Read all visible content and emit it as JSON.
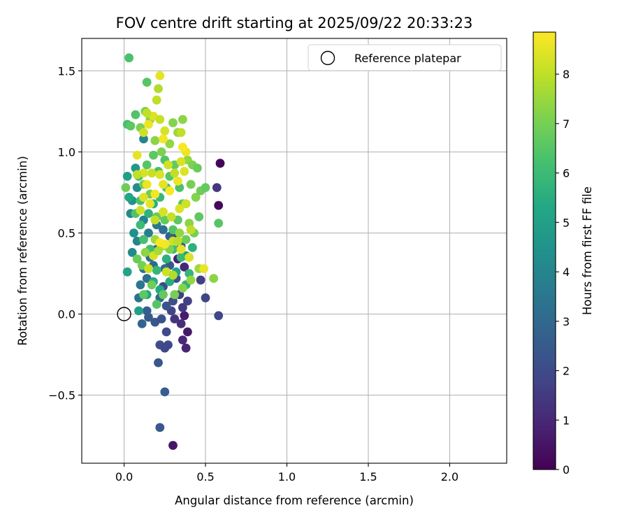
{
  "chart_data": {
    "type": "scatter",
    "title": "FOV centre drift starting at 2025/09/22 20:33:23",
    "xlabel": "Angular distance from reference (arcmin)",
    "ylabel": "Rotation from reference (arcmin)",
    "xlim": [
      -0.26,
      2.35
    ],
    "ylim": [
      -0.92,
      1.7
    ],
    "x_ticks": [
      0.0,
      0.5,
      1.0,
      1.5,
      2.0
    ],
    "x_tick_labels": [
      "0.0",
      "0.5",
      "1.0",
      "1.5",
      "2.0"
    ],
    "y_ticks": [
      -0.5,
      0.0,
      0.5,
      1.0,
      1.5
    ],
    "y_tick_labels": [
      "−0.5",
      "0.0",
      "0.5",
      "1.0",
      "1.5"
    ],
    "grid": true,
    "legend": {
      "position": "top-right",
      "entries": [
        "Reference platepar"
      ]
    },
    "reference_point": {
      "x": 0.0,
      "y": 0.0,
      "label": "Reference platepar"
    },
    "colorbar": {
      "label": "Hours from first FF file",
      "colormap": "viridis",
      "range": [
        0,
        8.85
      ],
      "ticks": [
        0,
        1,
        2,
        3,
        4,
        5,
        6,
        7,
        8
      ],
      "tick_labels": [
        "0",
        "1",
        "2",
        "3",
        "4",
        "5",
        "6",
        "7",
        "8"
      ]
    },
    "points_note": "approximate [x, y, hours] read from the plot",
    "points": [
      [
        0.59,
        0.93,
        0.1
      ],
      [
        0.58,
        0.67,
        0.2
      ],
      [
        0.3,
        -0.81,
        0.5
      ],
      [
        0.39,
        -0.11,
        0.6
      ],
      [
        0.37,
        -0.01,
        0.7
      ],
      [
        0.38,
        -0.21,
        0.9
      ],
      [
        0.36,
        -0.16,
        1.0
      ],
      [
        0.33,
        0.34,
        0.8
      ],
      [
        0.37,
        0.29,
        1.0
      ],
      [
        0.35,
        -0.06,
        1.2
      ],
      [
        0.31,
        -0.03,
        1.3
      ],
      [
        0.36,
        0.04,
        1.5
      ],
      [
        0.57,
        0.78,
        1.4
      ],
      [
        0.47,
        0.21,
        1.6
      ],
      [
        0.5,
        0.1,
        1.8
      ],
      [
        0.58,
        -0.01,
        1.9
      ],
      [
        0.39,
        0.08,
        1.7
      ],
      [
        0.34,
        0.12,
        1.6
      ],
      [
        0.29,
        0.02,
        1.8
      ],
      [
        0.26,
        -0.11,
        2.0
      ],
      [
        0.22,
        -0.19,
        2.1
      ],
      [
        0.27,
        -0.19,
        2.0
      ],
      [
        0.25,
        -0.21,
        1.9
      ],
      [
        0.21,
        -0.3,
        2.4
      ],
      [
        0.25,
        -0.48,
        2.6
      ],
      [
        0.22,
        -0.7,
        2.5
      ],
      [
        0.19,
        -0.05,
        2.4
      ],
      [
        0.23,
        -0.03,
        2.2
      ],
      [
        0.15,
        -0.02,
        2.5
      ],
      [
        0.14,
        0.02,
        2.7
      ],
      [
        0.11,
        -0.06,
        2.8
      ],
      [
        0.26,
        0.05,
        2.3
      ],
      [
        0.3,
        0.08,
        2.1
      ],
      [
        0.24,
        0.17,
        2.0
      ],
      [
        0.32,
        0.22,
        2.2
      ],
      [
        0.28,
        0.3,
        2.4
      ],
      [
        0.3,
        0.47,
        1.8
      ],
      [
        0.2,
        0.4,
        2.9
      ],
      [
        0.18,
        0.3,
        3.0
      ],
      [
        0.16,
        0.35,
        3.1
      ],
      [
        0.14,
        0.22,
        3.2
      ],
      [
        0.12,
        0.28,
        3.4
      ],
      [
        0.1,
        0.18,
        3.5
      ],
      [
        0.09,
        0.1,
        3.3
      ],
      [
        0.22,
        0.1,
        3.0
      ],
      [
        0.25,
        0.28,
        3.1
      ],
      [
        0.35,
        0.42,
        2.6
      ],
      [
        0.28,
        0.48,
        2.8
      ],
      [
        0.24,
        0.52,
        3.2
      ],
      [
        0.2,
        0.55,
        3.6
      ],
      [
        0.15,
        0.5,
        3.8
      ],
      [
        0.12,
        0.58,
        3.9
      ],
      [
        0.08,
        0.45,
        4.0
      ],
      [
        0.05,
        0.38,
        4.2
      ],
      [
        0.06,
        0.5,
        4.4
      ],
      [
        0.04,
        0.62,
        4.1
      ],
      [
        0.05,
        0.7,
        4.5
      ],
      [
        0.08,
        0.78,
        4.3
      ],
      [
        0.12,
        1.08,
        4.0
      ],
      [
        0.07,
        0.9,
        4.7
      ],
      [
        0.02,
        0.85,
        5.0
      ],
      [
        0.03,
        0.72,
        5.2
      ],
      [
        0.02,
        0.26,
        5.1
      ],
      [
        0.09,
        0.02,
        5.0
      ],
      [
        0.14,
        0.12,
        5.2
      ],
      [
        0.18,
        0.2,
        5.4
      ],
      [
        0.22,
        0.15,
        5.3
      ],
      [
        0.28,
        0.2,
        5.5
      ],
      [
        0.32,
        0.26,
        5.1
      ],
      [
        0.38,
        0.36,
        4.8
      ],
      [
        0.42,
        0.41,
        5.6
      ],
      [
        0.38,
        0.18,
        5.7
      ],
      [
        0.4,
        0.25,
        5.8
      ],
      [
        0.35,
        0.35,
        5.9
      ],
      [
        0.3,
        0.4,
        6.0
      ],
      [
        0.26,
        0.34,
        5.6
      ],
      [
        0.2,
        0.27,
        5.8
      ],
      [
        0.16,
        0.4,
        6.1
      ],
      [
        0.12,
        0.46,
        6.2
      ],
      [
        0.1,
        0.55,
        6.0
      ],
      [
        0.15,
        0.62,
        5.7
      ],
      [
        0.18,
        0.68,
        5.5
      ],
      [
        0.22,
        0.72,
        5.9
      ],
      [
        0.26,
        0.78,
        6.2
      ],
      [
        0.1,
        0.7,
        6.3
      ],
      [
        0.07,
        0.62,
        6.4
      ],
      [
        0.09,
        0.85,
        6.3
      ],
      [
        0.14,
        0.92,
        6.5
      ],
      [
        0.18,
        0.98,
        6.6
      ],
      [
        0.21,
        0.88,
        6.2
      ],
      [
        0.25,
        0.95,
        6.4
      ],
      [
        0.28,
        0.85,
        6.5
      ],
      [
        0.31,
        0.92,
        6.7
      ],
      [
        0.34,
        0.78,
        6.3
      ],
      [
        0.36,
        0.68,
        6.5
      ],
      [
        0.33,
        0.58,
        6.6
      ],
      [
        0.3,
        0.52,
        6.4
      ],
      [
        0.25,
        0.58,
        6.7
      ],
      [
        0.2,
        0.6,
        6.8
      ],
      [
        0.16,
        0.74,
        6.9
      ],
      [
        0.12,
        0.8,
        7.0
      ],
      [
        0.14,
        1.43,
        6.5
      ],
      [
        0.03,
        1.58,
        6.3
      ],
      [
        0.02,
        1.17,
        6.2
      ],
      [
        0.04,
        1.16,
        6.6
      ],
      [
        0.07,
        1.23,
        6.4
      ],
      [
        0.01,
        0.78,
        6.9
      ],
      [
        0.1,
        1.15,
        7.1
      ],
      [
        0.13,
        1.25,
        7.0
      ],
      [
        0.16,
        1.2,
        7.2
      ],
      [
        0.19,
        1.07,
        7.3
      ],
      [
        0.23,
        1.0,
        7.1
      ],
      [
        0.28,
        1.05,
        7.4
      ],
      [
        0.3,
        1.18,
        7.2
      ],
      [
        0.33,
        1.12,
        7.5
      ],
      [
        0.36,
        1.2,
        7.3
      ],
      [
        0.39,
        0.95,
        7.4
      ],
      [
        0.42,
        0.92,
        7.1
      ],
      [
        0.45,
        0.9,
        6.8
      ],
      [
        0.41,
        0.8,
        7.0
      ],
      [
        0.44,
        0.72,
        7.2
      ],
      [
        0.47,
        0.76,
        6.9
      ],
      [
        0.5,
        0.78,
        6.7
      ],
      [
        0.46,
        0.6,
        6.6
      ],
      [
        0.4,
        0.56,
        7.3
      ],
      [
        0.43,
        0.5,
        7.0
      ],
      [
        0.38,
        0.46,
        6.9
      ],
      [
        0.34,
        0.5,
        7.4
      ],
      [
        0.28,
        0.4,
        7.1
      ],
      [
        0.24,
        0.42,
        7.5
      ],
      [
        0.19,
        0.46,
        7.6
      ],
      [
        0.13,
        0.38,
        7.3
      ],
      [
        0.11,
        0.3,
        7.0
      ],
      [
        0.08,
        0.34,
        6.8
      ],
      [
        0.12,
        0.12,
        6.6
      ],
      [
        0.17,
        0.18,
        6.9
      ],
      [
        0.2,
        0.06,
        6.5
      ],
      [
        0.24,
        0.12,
        6.7
      ],
      [
        0.31,
        0.12,
        7.0
      ],
      [
        0.36,
        0.16,
        7.2
      ],
      [
        0.41,
        0.21,
        7.4
      ],
      [
        0.46,
        0.28,
        7.6
      ],
      [
        0.55,
        0.22,
        7.3
      ],
      [
        0.58,
        0.56,
        6.5
      ],
      [
        0.49,
        0.28,
        8.6
      ],
      [
        0.4,
        0.35,
        8.4
      ],
      [
        0.35,
        0.4,
        8.5
      ],
      [
        0.3,
        0.45,
        8.2
      ],
      [
        0.25,
        0.43,
        8.7
      ],
      [
        0.22,
        0.44,
        8.8
      ],
      [
        0.18,
        0.36,
        8.3
      ],
      [
        0.15,
        0.28,
        8.1
      ],
      [
        0.19,
        0.58,
        8.0
      ],
      [
        0.24,
        0.63,
        8.3
      ],
      [
        0.29,
        0.6,
        8.1
      ],
      [
        0.34,
        0.65,
        8.4
      ],
      [
        0.38,
        0.68,
        8.2
      ],
      [
        0.41,
        0.52,
        8.0
      ],
      [
        0.16,
        0.68,
        8.5
      ],
      [
        0.12,
        0.72,
        8.4
      ],
      [
        0.1,
        0.64,
        8.2
      ],
      [
        0.14,
        0.8,
        8.6
      ],
      [
        0.19,
        0.74,
        8.7
      ],
      [
        0.24,
        0.8,
        8.5
      ],
      [
        0.28,
        0.76,
        8.8
      ],
      [
        0.33,
        0.82,
        8.6
      ],
      [
        0.37,
        0.88,
        8.4
      ],
      [
        0.38,
        1.0,
        8.6
      ],
      [
        0.35,
        0.94,
        8.3
      ],
      [
        0.31,
        0.87,
        8.0
      ],
      [
        0.27,
        0.92,
        8.2
      ],
      [
        0.22,
        0.86,
        8.4
      ],
      [
        0.17,
        0.87,
        8.1
      ],
      [
        0.12,
        0.87,
        8.3
      ],
      [
        0.08,
        0.86,
        8.0
      ],
      [
        0.08,
        0.98,
        8.5
      ],
      [
        0.12,
        1.12,
        8.2
      ],
      [
        0.15,
        1.17,
        8.6
      ],
      [
        0.18,
        1.22,
        8.4
      ],
      [
        0.14,
        1.24,
        8.0
      ],
      [
        0.22,
        1.2,
        8.1
      ],
      [
        0.25,
        1.13,
        8.3
      ],
      [
        0.24,
        1.08,
        8.7
      ],
      [
        0.2,
        1.32,
        8.0
      ],
      [
        0.21,
        1.39,
        7.8
      ],
      [
        0.22,
        1.47,
        8.5
      ],
      [
        0.35,
        1.12,
        8.0
      ],
      [
        0.36,
        1.03,
        8.8
      ],
      [
        0.33,
        0.45,
        7.9
      ],
      [
        0.26,
        0.26,
        8.2
      ],
      [
        0.3,
        0.24,
        7.8
      ],
      [
        0.21,
        0.39,
        7.7
      ]
    ]
  }
}
